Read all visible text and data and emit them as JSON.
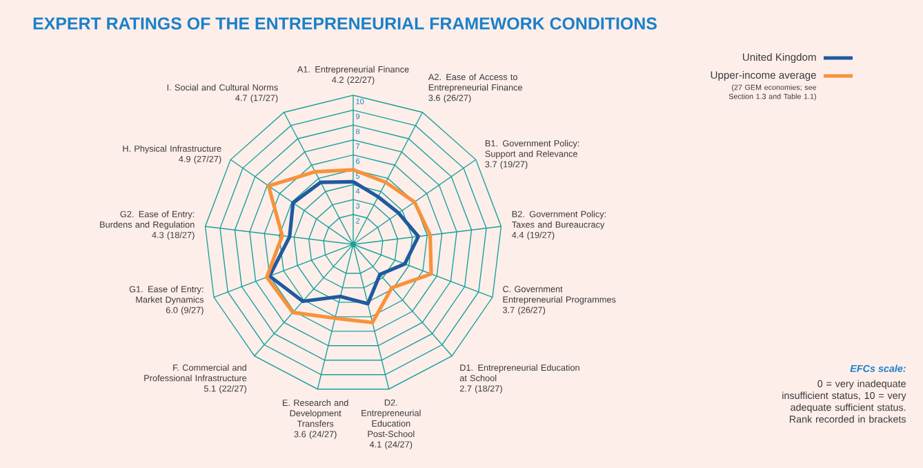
{
  "chart_data": {
    "type": "radar",
    "title": "EXPERT RATINGS OF THE ENTREPRENEURIAL FRAMEWORK CONDITIONS",
    "categories": [
      "A1. Entrepreneurial Finance",
      "A2. Ease of Access to Entrepreneurial Finance",
      "B1. Government Policy: Support and Relevance",
      "B2. Government Policy: Taxes and Bureaucracy",
      "C. Government Entrepreneurial Programmes",
      "D1. Entrepreneurial Education at School",
      "D2. Entrepreneurial Education Post-School",
      "E. Research and Development Transfers",
      "F. Commercial and Professional Infrastructure",
      "G1. Ease of Entry: Market Dynamics",
      "G2. Ease of Entry: Burdens and Regulation",
      "H. Physical Infrastructure",
      "I. Social and Cultural Norms"
    ],
    "ylim": [
      0,
      10
    ],
    "yticks": [
      2,
      3,
      4,
      5,
      6,
      7,
      8,
      9,
      10
    ],
    "grid": true,
    "legend": "top right",
    "series": [
      {
        "name": "United Kingdom",
        "color": "#1f5a9e",
        "values": [
          4.2,
          3.6,
          3.7,
          4.4,
          3.7,
          2.7,
          4.1,
          3.6,
          5.1,
          6.0,
          4.3,
          4.9,
          4.7
        ]
      },
      {
        "name": "Upper-income average",
        "color": "#f7923a",
        "values": [
          5.0,
          4.7,
          5.0,
          5.2,
          5.6,
          3.9,
          5.4,
          5.1,
          6.1,
          6.2,
          4.8,
          6.9,
          5.5
        ]
      }
    ],
    "annotations": [
      "(27 GEM economies; see Section 1.3 and Table 1.1)",
      "EFCs scale:",
      "0 = very inadequate insufficient status, 10 = very adequate sufficient status. Rank recorded in brackets",
      "4.2 (22/27)",
      "3.6 (26/27)",
      "3.7 (19/27)",
      "4.4 (19/27)",
      "3.7 (26/27)",
      "2.7 (18/27)",
      "4.1 (24/27)",
      "3.6 (24/27)",
      "5.1 (22/27)",
      "6.0 (9/27)",
      "4.3 (18/27)",
      "4.9 (27/27)",
      "4.7 (17/27)"
    ]
  }
}
